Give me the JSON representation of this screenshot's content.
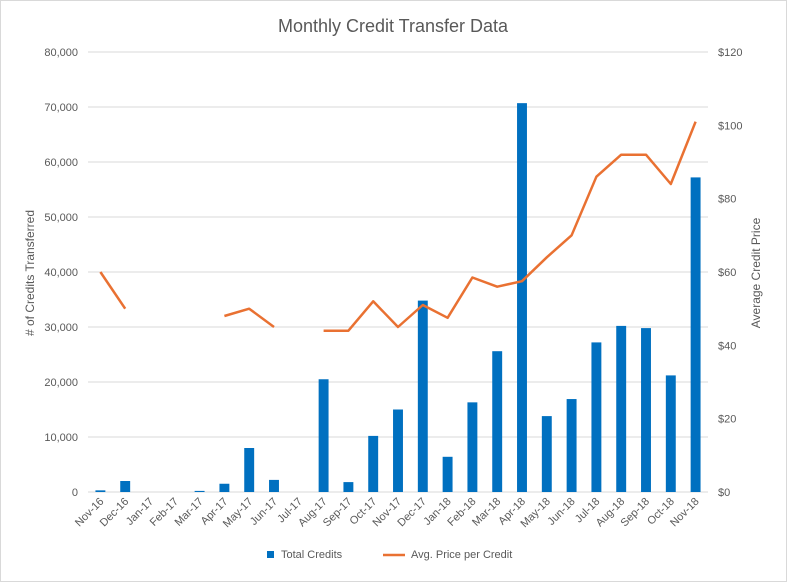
{
  "chart_data": {
    "type": "bar",
    "title": "Monthly Credit Transfer Data",
    "xlabel": "",
    "ylabel": "# of Credits Transferred",
    "y2label": "Average Credit Price",
    "ylim": [
      0,
      80000
    ],
    "y2lim": [
      0,
      120
    ],
    "yticks": [
      "0",
      "10,000",
      "20,000",
      "30,000",
      "40,000",
      "50,000",
      "60,000",
      "70,000",
      "80,000"
    ],
    "y2ticks": [
      "$0",
      "$20",
      "$40",
      "$60",
      "$80",
      "$100",
      "$120"
    ],
    "categories": [
      "Nov-16",
      "Dec-16",
      "Jan-17",
      "Feb-17",
      "Mar-17",
      "Apr-17",
      "May-17",
      "Jun-17",
      "Jul-17",
      "Aug-17",
      "Sep-17",
      "Oct-17",
      "Nov-17",
      "Dec-17",
      "Jan-18",
      "Feb-18",
      "Mar-18",
      "Apr-18",
      "May-18",
      "Jun-18",
      "Jul-18",
      "Aug-18",
      "Sep-18",
      "Oct-18",
      "Nov-18"
    ],
    "grid": true,
    "legend_position": "bottom",
    "series": [
      {
        "name": "Total Credits",
        "type": "bar",
        "axis": "left",
        "color": "#0070c0",
        "values": [
          300,
          2000,
          0,
          0,
          200,
          1500,
          8000,
          2200,
          0,
          20500,
          1800,
          10200,
          15000,
          34800,
          6400,
          16300,
          25600,
          70700,
          13800,
          16900,
          27200,
          30200,
          29800,
          21200,
          57200
        ]
      },
      {
        "name": "Avg. Price per Credit",
        "type": "line",
        "axis": "right",
        "color": "#e97132",
        "values": [
          60,
          50,
          null,
          null,
          null,
          48,
          50,
          45,
          null,
          44,
          44,
          52,
          45,
          51,
          47.5,
          58.5,
          56,
          57.5,
          64,
          70,
          86,
          92,
          92,
          84,
          101
        ]
      }
    ]
  }
}
